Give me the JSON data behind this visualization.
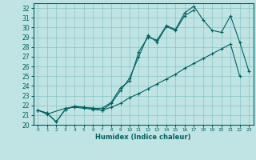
{
  "xlabel": "Humidex (Indice chaleur)",
  "bg_color": "#c0e4e4",
  "grid_color": "#88c4c4",
  "line_color": "#006060",
  "xlim": [
    -0.5,
    23.5
  ],
  "ylim": [
    20,
    32.5
  ],
  "xticks": [
    0,
    1,
    2,
    3,
    4,
    5,
    6,
    7,
    8,
    9,
    10,
    11,
    12,
    13,
    14,
    15,
    16,
    17,
    18,
    19,
    20,
    21,
    22,
    23
  ],
  "yticks": [
    20,
    21,
    22,
    23,
    24,
    25,
    26,
    27,
    28,
    29,
    30,
    31,
    32
  ],
  "curve1": [
    21.5,
    21.1,
    null,
    21.7,
    21.8,
    21.7,
    21.6,
    21.5,
    22.2,
    23.5,
    24.8,
    27.0,
    29.2,
    28.5,
    30.1,
    29.7,
    31.2,
    31.8,
    null,
    null,
    null,
    null,
    null,
    null
  ],
  "curve2": [
    21.5,
    21.2,
    20.3,
    21.6,
    21.9,
    21.8,
    21.7,
    21.7,
    22.3,
    23.8,
    24.5,
    27.5,
    29.0,
    28.7,
    30.2,
    29.8,
    31.5,
    32.2,
    30.8,
    29.7,
    29.5,
    31.2,
    28.5,
    25.5
  ],
  "curve3": [
    21.5,
    21.2,
    20.3,
    21.6,
    21.9,
    21.8,
    21.7,
    21.5,
    21.8,
    22.2,
    22.8,
    23.2,
    23.7,
    24.2,
    24.7,
    25.2,
    25.8,
    26.3,
    26.8,
    27.3,
    27.8,
    28.3,
    25.0,
    null
  ]
}
